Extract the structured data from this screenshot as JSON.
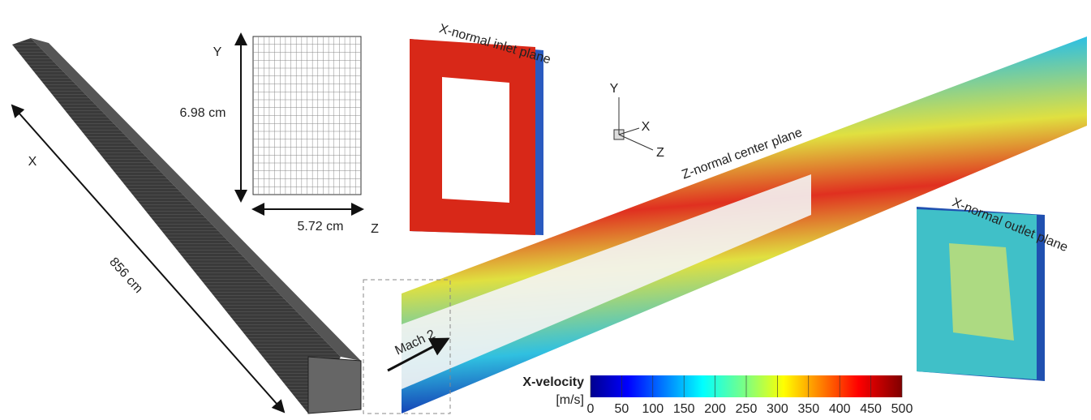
{
  "mesh": {
    "axis_y": "Y",
    "axis_x": "X",
    "axis_z": "Z",
    "height": "6.98 cm",
    "width": "5.72 cm",
    "length": "856 cm"
  },
  "planes": {
    "inlet": "X-normal inlet plane",
    "center": "Z-normal center plane",
    "outlet": "X-normal outlet plane"
  },
  "triad": {
    "y": "Y",
    "x": "X",
    "z": "Z"
  },
  "flow": "Mach 2",
  "colorbar": {
    "title": "X-velocity",
    "unit": "[m/s]",
    "range": [
      0,
      500
    ],
    "ticks": [
      0,
      50,
      100,
      150,
      200,
      250,
      300,
      350,
      400,
      450,
      500
    ]
  }
}
